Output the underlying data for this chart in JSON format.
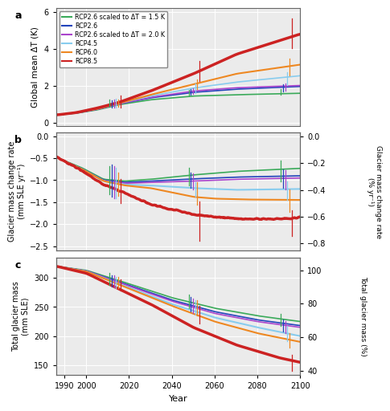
{
  "title_a": "a",
  "title_b": "b",
  "title_c": "c",
  "xlabel": "Year",
  "ylabel_a": "Global mean ΔT (K)",
  "ylabel_b": "Glacier mass change rate\n(mm SLE yr⁻¹)",
  "ylabel_b_right": "Glacier mass change rate\n(% yr⁻¹)",
  "ylabel_c": "Total glacier mass\n(mm SLE)",
  "ylabel_c_right": "Total glacier mass (%)",
  "colors": {
    "rcp26_15": "#3aaa5a",
    "rcp26": "#2244bb",
    "rcp26_20": "#aa44cc",
    "rcp45": "#88ccee",
    "rcp60": "#ee8822",
    "rcp85": "#cc2222"
  },
  "legend_labels": [
    "RCP2.6 scaled to ΔT = 1.5 K",
    "RCP2.6",
    "RCP2.6 scaled to ΔT = 2.0 K",
    "RCP4.5",
    "RCP6.0",
    "RCP8.5"
  ],
  "panel_a": {
    "ylim": [
      -0.15,
      6.2
    ],
    "yticks": [
      0,
      2,
      4,
      6
    ]
  },
  "panel_b": {
    "ylim": [
      -2.6,
      0.08
    ],
    "yticks": [
      0,
      -0.5,
      -1.0,
      -1.5,
      -2.0,
      -2.5
    ],
    "ylim_right": [
      -0.852,
      0.026
    ],
    "yticks_right": [
      0,
      -0.2,
      -0.4,
      -0.6,
      -0.8
    ]
  },
  "panel_c": {
    "ylim": [
      133,
      335
    ],
    "yticks": [
      150,
      200,
      250,
      300
    ],
    "ylim_right": [
      37.5,
      107.5
    ],
    "yticks_right": [
      40,
      60,
      80,
      100
    ]
  },
  "background_color": "#ebebeb",
  "grid_color": "#ffffff",
  "xticks": [
    1990,
    2000,
    2020,
    2040,
    2060,
    2080,
    2100
  ]
}
